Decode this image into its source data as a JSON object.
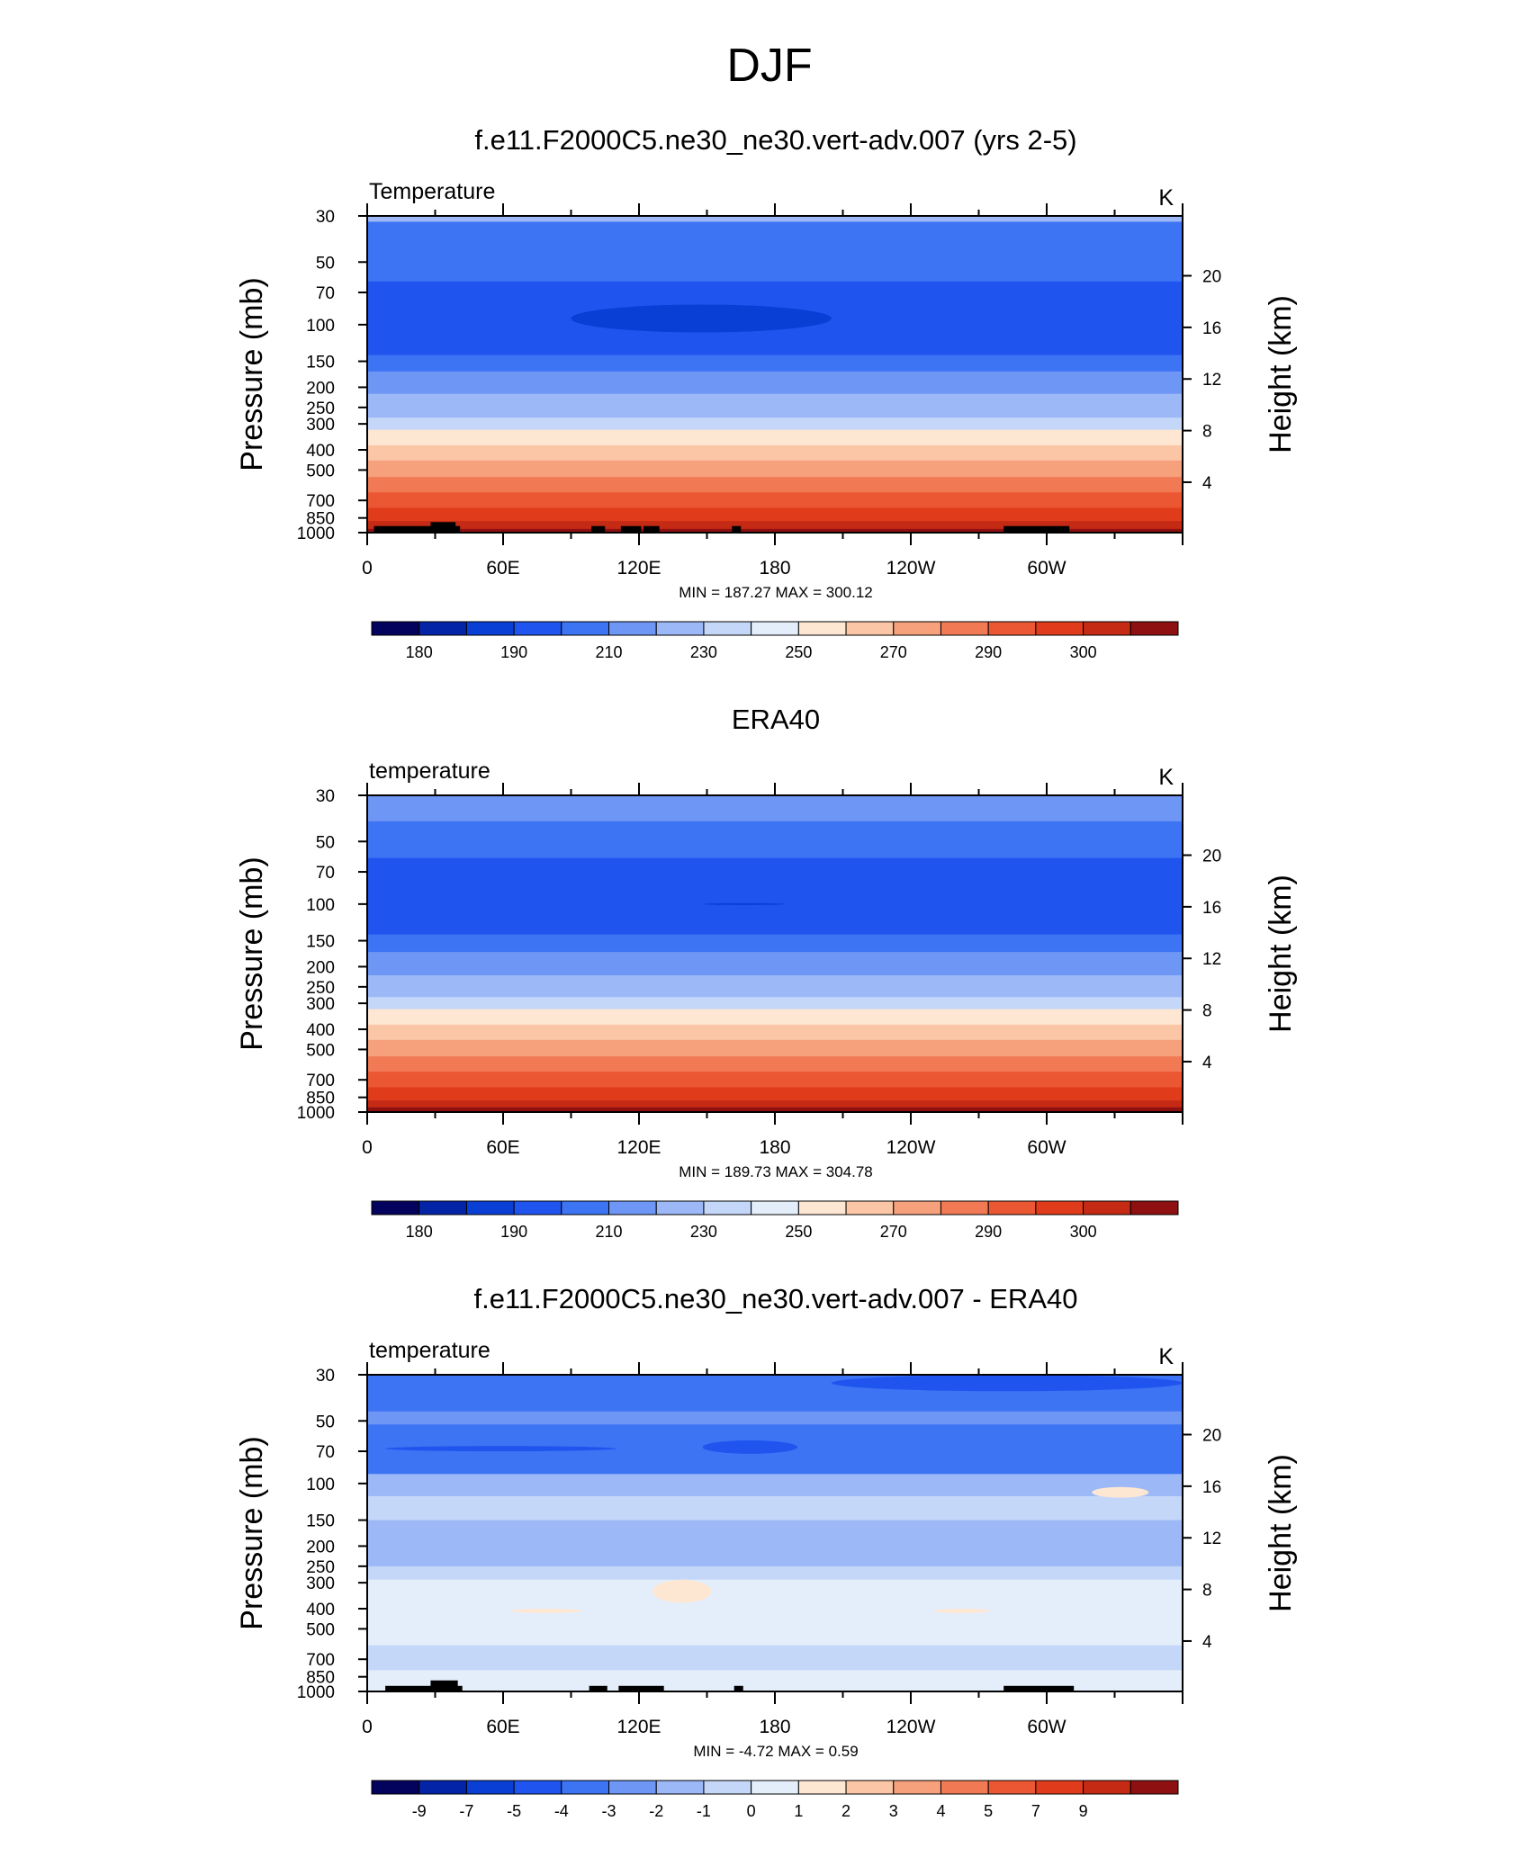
{
  "main_title": "DJF",
  "colormap_colors": [
    "#03035e",
    "#0424a8",
    "#0a3fd6",
    "#1f55ee",
    "#3d74f4",
    "#6e96f5",
    "#9cb8f6",
    "#c4d7f8",
    "#e4eefb",
    "#fde7d3",
    "#fbc6a6",
    "#f6a07c",
    "#f17a55",
    "#eb5733",
    "#e03c1c",
    "#c42a14",
    "#8e1010"
  ],
  "chart_data": [
    {
      "type": "heatmap",
      "title": "f.e11.F2000C5.ne30_ne30.vert-adv.007 (yrs 2-5)",
      "left_string": "Temperature",
      "right_string": "K",
      "ylabel": "Pressure (mb)",
      "ylabel_right": "Height (km)",
      "x_ticks": [
        "0",
        "60E",
        "120E",
        "180",
        "120W",
        "60W"
      ],
      "x_tick_values": [
        0,
        60,
        120,
        180,
        240,
        300
      ],
      "xlim": [
        0,
        360
      ],
      "y_ticks": [
        "30",
        "50",
        "70",
        "100",
        "150",
        "200",
        "250",
        "300",
        "400",
        "500",
        "700",
        "850",
        "1000"
      ],
      "y_tick_values": [
        30,
        50,
        70,
        100,
        150,
        200,
        250,
        300,
        400,
        500,
        700,
        850,
        1000
      ],
      "ylim": [
        1000,
        30
      ],
      "y_scale": "log",
      "height_ticks": [
        "20",
        "16",
        "12",
        "8",
        "4"
      ],
      "height_tick_values": [
        20,
        16,
        12,
        8,
        4
      ],
      "stats": "MIN = 187.27  MAX = 300.12",
      "colorbar_labels": [
        "180",
        "190",
        "210",
        "230",
        "250",
        "270",
        "290",
        "300"
      ],
      "bands": [
        {
          "p": 30,
          "level": 6
        },
        {
          "p": 32,
          "level": 4
        },
        {
          "p": 62,
          "level": 3
        },
        {
          "p": 140,
          "level": 4
        },
        {
          "p": 168,
          "level": 5
        },
        {
          "p": 215,
          "level": 6
        },
        {
          "p": 280,
          "level": 7
        },
        {
          "p": 320,
          "level": 9
        },
        {
          "p": 380,
          "level": 10
        },
        {
          "p": 450,
          "level": 11
        },
        {
          "p": 540,
          "level": 12
        },
        {
          "p": 640,
          "level": 13
        },
        {
          "p": 760,
          "level": 14
        },
        {
          "p": 880,
          "level": 15
        },
        {
          "p": 960,
          "level": 16
        }
      ],
      "blobs": [
        {
          "lon0": 90,
          "lon1": 205,
          "p": 100,
          "p_top": 80,
          "p_bot": 109,
          "level": 2
        }
      ],
      "topography": [
        {
          "lon0": 3,
          "lon1": 41,
          "p": 930
        },
        {
          "lon0": 28,
          "lon1": 39,
          "p": 890
        },
        {
          "lon0": 99,
          "lon1": 105,
          "p": 930
        },
        {
          "lon0": 112,
          "lon1": 121,
          "p": 930
        },
        {
          "lon0": 122,
          "lon1": 129,
          "p": 930
        },
        {
          "lon0": 161,
          "lon1": 165,
          "p": 930
        },
        {
          "lon0": 281,
          "lon1": 310,
          "p": 930
        }
      ]
    },
    {
      "type": "heatmap",
      "title": "ERA40",
      "left_string": "temperature",
      "right_string": "K",
      "ylabel": "Pressure (mb)",
      "ylabel_right": "Height (km)",
      "x_ticks": [
        "0",
        "60E",
        "120E",
        "180",
        "120W",
        "60W"
      ],
      "x_tick_values": [
        0,
        60,
        120,
        180,
        240,
        300
      ],
      "xlim": [
        0,
        360
      ],
      "y_ticks": [
        "30",
        "50",
        "70",
        "100",
        "150",
        "200",
        "250",
        "300",
        "400",
        "500",
        "700",
        "850",
        "1000"
      ],
      "y_tick_values": [
        30,
        50,
        70,
        100,
        150,
        200,
        250,
        300,
        400,
        500,
        700,
        850,
        1000
      ],
      "ylim": [
        1000,
        30
      ],
      "y_scale": "log",
      "height_ticks": [
        "20",
        "16",
        "12",
        "8",
        "4"
      ],
      "height_tick_values": [
        20,
        16,
        12,
        8,
        4
      ],
      "stats": "MIN = 189.73  MAX = 304.78",
      "colorbar_labels": [
        "180",
        "190",
        "210",
        "230",
        "250",
        "270",
        "290",
        "300"
      ],
      "bands": [
        {
          "p": 30,
          "level": 5
        },
        {
          "p": 40,
          "level": 4
        },
        {
          "p": 60,
          "level": 3
        },
        {
          "p": 140,
          "level": 4
        },
        {
          "p": 170,
          "level": 5
        },
        {
          "p": 220,
          "level": 6
        },
        {
          "p": 280,
          "level": 7
        },
        {
          "p": 320,
          "level": 9
        },
        {
          "p": 380,
          "level": 10
        },
        {
          "p": 450,
          "level": 11
        },
        {
          "p": 540,
          "level": 12
        },
        {
          "p": 640,
          "level": 13
        },
        {
          "p": 760,
          "level": 14
        },
        {
          "p": 880,
          "level": 15
        },
        {
          "p": 950,
          "level": 16
        }
      ],
      "blobs": [
        {
          "lon0": 148,
          "lon1": 185,
          "p": 100,
          "p_top": 99,
          "p_bot": 101,
          "level": 2
        }
      ],
      "topography": []
    },
    {
      "type": "heatmap",
      "title": "f.e11.F2000C5.ne30_ne30.vert-adv.007 - ERA40",
      "left_string": "temperature",
      "right_string": "K",
      "ylabel": "Pressure (mb)",
      "ylabel_right": "Height (km)",
      "x_ticks": [
        "0",
        "60E",
        "120E",
        "180",
        "120W",
        "60W"
      ],
      "x_tick_values": [
        0,
        60,
        120,
        180,
        240,
        300
      ],
      "xlim": [
        0,
        360
      ],
      "y_ticks": [
        "30",
        "50",
        "70",
        "100",
        "150",
        "200",
        "250",
        "300",
        "400",
        "500",
        "700",
        "850",
        "1000"
      ],
      "y_tick_values": [
        30,
        50,
        70,
        100,
        150,
        200,
        250,
        300,
        400,
        500,
        700,
        850,
        1000
      ],
      "ylim": [
        1000,
        30
      ],
      "y_scale": "log",
      "height_ticks": [
        "20",
        "16",
        "12",
        "8",
        "4"
      ],
      "height_tick_values": [
        20,
        16,
        12,
        8,
        4
      ],
      "stats": "MIN =  -4.72  MAX =   0.59",
      "colorbar_labels": [
        "-9",
        "-7",
        "-5",
        "-4",
        "-3",
        "-2",
        "-1",
        "0",
        "1",
        "2",
        "3",
        "4",
        "5",
        "7",
        "9"
      ],
      "bands": [
        {
          "p": 30,
          "level": 4
        },
        {
          "p": 45,
          "level": 5
        },
        {
          "p": 52,
          "level": 4
        },
        {
          "p": 90,
          "level": 6
        },
        {
          "p": 115,
          "level": 7
        },
        {
          "p": 150,
          "level": 6
        },
        {
          "p": 250,
          "level": 7
        },
        {
          "p": 290,
          "level": 8
        },
        {
          "p": 600,
          "level": 7
        },
        {
          "p": 790,
          "level": 8
        }
      ],
      "blobs": [
        {
          "lon0": 205,
          "lon1": 360,
          "p": 33,
          "p_top": 30,
          "p_bot": 36,
          "level": 3
        },
        {
          "lon0": 8,
          "lon1": 110,
          "p": 68,
          "p_top": 66,
          "p_bot": 70,
          "level": 3
        },
        {
          "lon0": 148,
          "lon1": 190,
          "p": 67,
          "p_top": 62,
          "p_bot": 72,
          "level": 3
        },
        {
          "lon0": 320,
          "lon1": 345,
          "p": 110,
          "p_top": 104,
          "p_bot": 117,
          "level": 9
        },
        {
          "lon0": 126,
          "lon1": 152,
          "p": 330,
          "p_top": 290,
          "p_bot": 375,
          "level": 9
        },
        {
          "lon0": 63,
          "lon1": 95,
          "p": 410,
          "p_top": 400,
          "p_bot": 420,
          "level": 9
        },
        {
          "lon0": 250,
          "lon1": 275,
          "p": 410,
          "p_top": 400,
          "p_bot": 420,
          "level": 9
        }
      ],
      "topography": [
        {
          "lon0": 8,
          "lon1": 42,
          "p": 940
        },
        {
          "lon0": 28,
          "lon1": 40,
          "p": 885
        },
        {
          "lon0": 98,
          "lon1": 106,
          "p": 940
        },
        {
          "lon0": 111,
          "lon1": 131,
          "p": 940
        },
        {
          "lon0": 162,
          "lon1": 166,
          "p": 940
        },
        {
          "lon0": 281,
          "lon1": 312,
          "p": 940
        }
      ]
    }
  ]
}
